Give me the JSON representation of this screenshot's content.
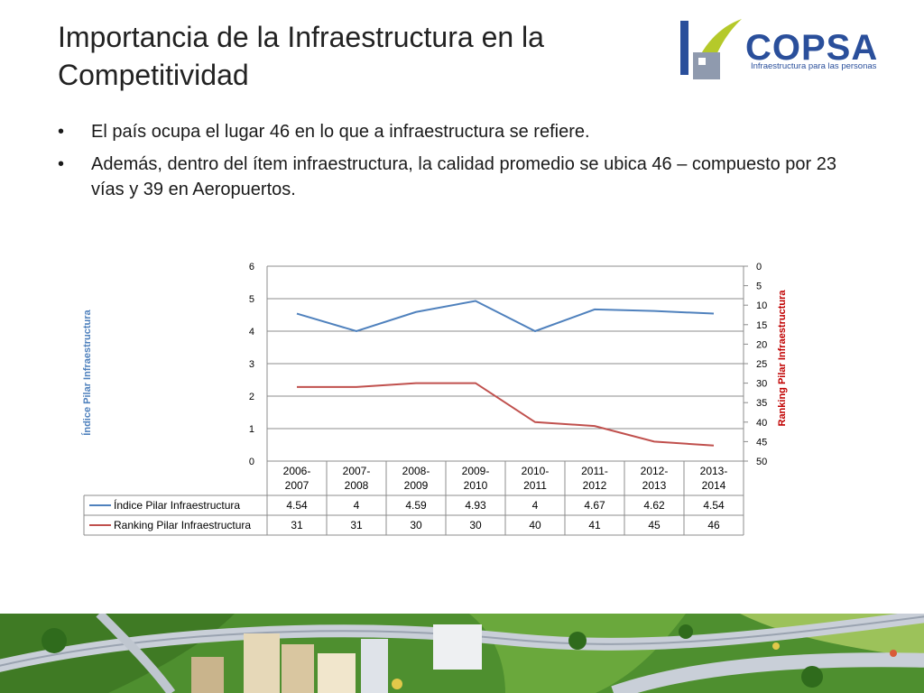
{
  "slide": {
    "title_line1": "Importancia de la Infraestructura en la",
    "title_line2": "Competitividad",
    "bullets": [
      "El país ocupa el lugar 46 en lo que a infraestructura se refiere.",
      "Además, dentro del ítem infraestructura, la calidad promedio se ubica 46 – compuesto por 23 vías y 39 en Aeropuertos."
    ],
    "bullet_glyph": "•"
  },
  "logo": {
    "name": "COPSA",
    "tagline": "Infraestructura para las personas",
    "colors": {
      "blue": "#2a4f9b",
      "green": "#b5c92a",
      "gray": "#8f9aae"
    }
  },
  "chart_data": {
    "type": "line",
    "categories": [
      [
        "2006-",
        "2007"
      ],
      [
        "2007-",
        "2008"
      ],
      [
        "2008-",
        "2009"
      ],
      [
        "2009-",
        "2010"
      ],
      [
        "2010-",
        "2011"
      ],
      [
        "2011-",
        "2012"
      ],
      [
        "2012-",
        "2013"
      ],
      [
        "2013-",
        "2014"
      ]
    ],
    "series": [
      {
        "name": "Índice Pilar Infraestructura",
        "axis": "left",
        "color": "#4f81bd",
        "values": [
          4.54,
          4,
          4.59,
          4.93,
          4,
          4.67,
          4.62,
          4.54
        ],
        "labels": [
          "4.54",
          "4",
          "4.59",
          "4.93",
          "4",
          "4.67",
          "4.62",
          "4.54"
        ]
      },
      {
        "name": "Ranking Pilar Infraestructura",
        "axis": "right",
        "color": "#c0504d",
        "values": [
          31,
          31,
          30,
          30,
          40,
          41,
          45,
          46
        ],
        "labels": [
          "31",
          "31",
          "30",
          "30",
          "40",
          "41",
          "45",
          "46"
        ]
      }
    ],
    "ylabel": "Índice Pilar Infraestructura",
    "ylabel_color": "#4f81bd",
    "y2label": "Ranking Pilar Infraestructura",
    "y2label_color": "#c00000",
    "ylim": [
      0,
      6
    ],
    "y_ticks": [
      0,
      1,
      2,
      3,
      4,
      5,
      6
    ],
    "y2lim": [
      0,
      50
    ],
    "y2_reversed": true,
    "y2_ticks": [
      0,
      5,
      10,
      15,
      20,
      25,
      30,
      35,
      40,
      45,
      50
    ],
    "grid": true,
    "legend": "data-table"
  }
}
